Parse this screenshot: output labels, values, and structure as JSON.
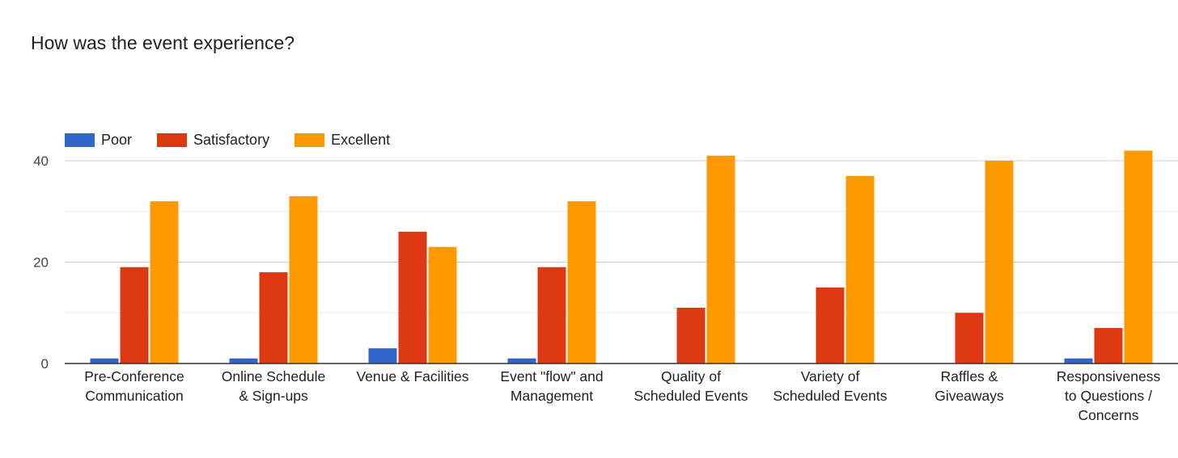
{
  "chart_data": {
    "type": "bar",
    "title": "How was the event experience?",
    "categories": [
      [
        "Pre-Conference",
        "Communication"
      ],
      [
        "Online Schedule",
        "& Sign-ups"
      ],
      [
        "Venue & Facilities"
      ],
      [
        "Event \"flow\" and",
        "Management"
      ],
      [
        "Quality of",
        "Scheduled Events"
      ],
      [
        "Variety of",
        "Scheduled Events"
      ],
      [
        "Raffles &",
        "Giveaways"
      ],
      [
        "Responsiveness",
        "to Questions /",
        "Concerns"
      ]
    ],
    "series": [
      {
        "name": "Poor",
        "color": "#3366cc",
        "values": [
          1,
          1,
          3,
          1,
          0,
          0,
          0,
          1
        ]
      },
      {
        "name": "Satisfactory",
        "color": "#dc3912",
        "values": [
          19,
          18,
          26,
          19,
          11,
          15,
          10,
          7
        ]
      },
      {
        "name": "Excellent",
        "color": "#ff9900",
        "values": [
          32,
          33,
          23,
          32,
          41,
          37,
          40,
          42
        ]
      }
    ],
    "ylim": [
      0,
      40
    ],
    "yticks": [
      0,
      20,
      40
    ],
    "minor_gridlines": [
      10,
      30
    ],
    "legend_position": "top-left",
    "xlabel": "",
    "ylabel": ""
  }
}
